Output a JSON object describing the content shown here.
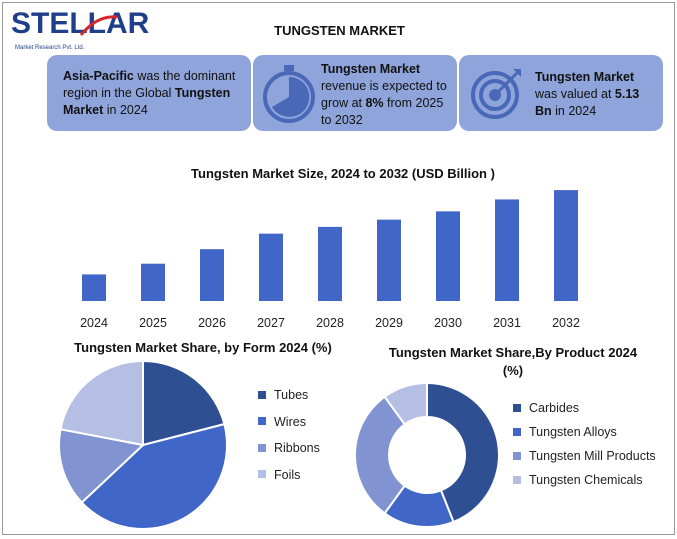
{
  "brand": {
    "logo_text": "STELLAR",
    "logo_subtitle": "Market Research Pvt. Ltd.",
    "color": "#1f3f8a"
  },
  "header": {
    "title": "TUNGSTEN MARKET"
  },
  "cards": [
    {
      "strong1": "Asia-Pacific",
      "text1": " was the dominant region in the Global ",
      "strong2": "Tungsten Market",
      "text2": " in 2024",
      "icon": "none"
    },
    {
      "strong1": "Tungsten Market",
      "text1": " revenue is expected to grow at ",
      "strong2": "8%",
      "text2": " from 2025 to 2032",
      "icon": "stopwatch-icon"
    },
    {
      "strong1": "Tungsten Market",
      "text1": " was valued at ",
      "strong2": "5.13 Bn",
      "text2": " in 2024",
      "icon": "target-icon"
    }
  ],
  "colors": {
    "card_bg": "#8fa4db",
    "bar": "#4066c8",
    "pie": [
      "#2f4f93",
      "#4066c8",
      "#8193d1",
      "#b5bee3"
    ]
  },
  "chart_data": [
    {
      "type": "bar",
      "title": "Tungsten Market Size, 2024 to 2032 (USD Billion )",
      "categories": [
        "2024",
        "2025",
        "2026",
        "2027",
        "2028",
        "2029",
        "2030",
        "2031",
        "2032"
      ],
      "values": [
        5.13,
        7.2,
        10.0,
        13.0,
        14.3,
        15.7,
        17.3,
        19.6,
        21.4
      ],
      "ylim": [
        0,
        22
      ],
      "grid": false,
      "xlabel": "",
      "ylabel": ""
    },
    {
      "type": "pie",
      "title": "Tungsten Market Share, by Form 2024 (%)",
      "labels": [
        "Tubes",
        "Wires",
        "Ribbons",
        "Foils"
      ],
      "values": [
        21,
        42,
        15,
        22
      ],
      "legend": "right"
    },
    {
      "type": "pie",
      "donut": true,
      "title": "Tungsten Market Share,By Product 2024 (%)",
      "labels": [
        "Carbides",
        "Tungsten Alloys",
        "Tungsten Mill Products",
        "Tungsten Chemicals"
      ],
      "values": [
        44,
        16,
        30,
        10
      ],
      "legend": "right"
    }
  ]
}
